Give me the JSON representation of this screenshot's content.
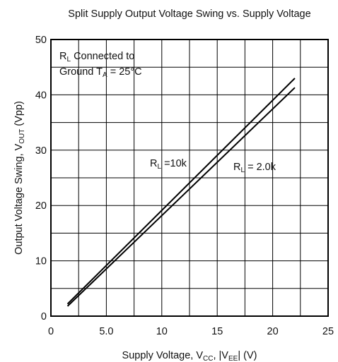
{
  "chart_data": {
    "type": "line",
    "title": "Split Supply Output Voltage Swing vs. Supply Voltage",
    "xlabel": {
      "main": "Supply Voltage, V",
      "sub1": "CC",
      "mid": ", |V",
      "sub2": "EE",
      "end": "| (V)"
    },
    "ylabel": {
      "main": "Output Voltage Swing, V",
      "sub": "OUT",
      "end": " (Vpp)"
    },
    "xlim": [
      0,
      25
    ],
    "ylim": [
      0,
      50
    ],
    "xticks": [
      0,
      5,
      10,
      15,
      20,
      25
    ],
    "xtick_labels": [
      "0",
      "5.0",
      "10",
      "15",
      "20",
      "25"
    ],
    "yticks": [
      0,
      10,
      20,
      30,
      40,
      50
    ],
    "ytick_labels": [
      "0",
      "10",
      "20",
      "30",
      "40",
      "50"
    ],
    "grid": {
      "x_step": 2.5,
      "y_step": 5
    },
    "series": [
      {
        "name": "RL =10k",
        "x": [
          1.5,
          22
        ],
        "y": [
          2.2,
          43.0
        ]
      },
      {
        "name": "RL = 2.0k",
        "x": [
          1.5,
          22
        ],
        "y": [
          1.8,
          41.3
        ]
      }
    ],
    "annotations": {
      "box": {
        "line1_pre": "R",
        "line1_sub": "L",
        "line1_post": " Connected to",
        "line2_pre": "Ground T",
        "line2_sub": "A",
        "line2_post": " = 25°C"
      },
      "label_10k": {
        "pre": "R",
        "sub": "L",
        "post": " =10k"
      },
      "label_2k": {
        "pre": "R",
        "sub": "L",
        "post": " = 2.0k"
      }
    }
  }
}
